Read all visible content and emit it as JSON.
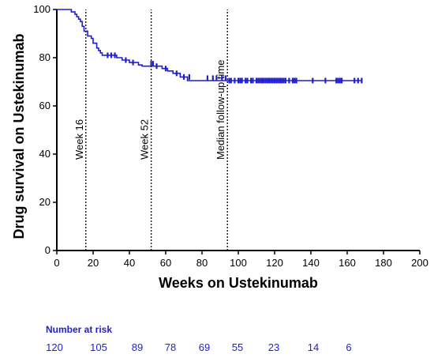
{
  "chart_data": {
    "type": "line",
    "xlabel": "Weeks on Ustekinumab",
    "ylabel": "Drug survival on Ustekinumab",
    "xlim": [
      0,
      200
    ],
    "ylim": [
      0,
      100
    ],
    "x_ticks": [
      0,
      20,
      40,
      60,
      80,
      100,
      120,
      140,
      160,
      180,
      200
    ],
    "y_ticks": [
      0,
      20,
      40,
      60,
      80,
      100
    ],
    "grid": false,
    "series_color": "#1f1fcf",
    "steps": [
      [
        0,
        100
      ],
      [
        8,
        100
      ],
      [
        8,
        99
      ],
      [
        10,
        99
      ],
      [
        10,
        98
      ],
      [
        11,
        98
      ],
      [
        11,
        97
      ],
      [
        12,
        97
      ],
      [
        12,
        96
      ],
      [
        13,
        96
      ],
      [
        13,
        95
      ],
      [
        14,
        95
      ],
      [
        14,
        93
      ],
      [
        15,
        93
      ],
      [
        15,
        91
      ],
      [
        17,
        91
      ],
      [
        17,
        89
      ],
      [
        19,
        89
      ],
      [
        19,
        88
      ],
      [
        20,
        88
      ],
      [
        20,
        86
      ],
      [
        22,
        86
      ],
      [
        22,
        84
      ],
      [
        23,
        84
      ],
      [
        23,
        83
      ],
      [
        24,
        83
      ],
      [
        24,
        82
      ],
      [
        25,
        82
      ],
      [
        25,
        81
      ],
      [
        33,
        81
      ],
      [
        33,
        80
      ],
      [
        36,
        80
      ],
      [
        36,
        79
      ],
      [
        40,
        79
      ],
      [
        40,
        78
      ],
      [
        45,
        78
      ],
      [
        45,
        77
      ],
      [
        47,
        77
      ],
      [
        47,
        76.5
      ],
      [
        58,
        76.5
      ],
      [
        58,
        75.5
      ],
      [
        61,
        75.5
      ],
      [
        61,
        74.5
      ],
      [
        64,
        74.5
      ],
      [
        64,
        73.5
      ],
      [
        68,
        73.5
      ],
      [
        68,
        72
      ],
      [
        72,
        72
      ],
      [
        72,
        70.5
      ],
      [
        168,
        70.5
      ]
    ],
    "censored": [
      [
        28,
        81
      ],
      [
        30,
        81
      ],
      [
        32,
        81
      ],
      [
        38,
        79
      ],
      [
        42,
        78
      ],
      [
        52,
        77.5
      ],
      [
        53,
        77.5
      ],
      [
        55,
        76.5
      ],
      [
        60,
        75.5
      ],
      [
        66,
        73.5
      ],
      [
        70,
        72
      ],
      [
        73,
        72
      ],
      [
        83,
        71.5
      ],
      [
        86,
        71.5
      ],
      [
        88,
        71.5
      ],
      [
        91,
        71.5
      ],
      [
        93,
        71.5
      ],
      [
        95,
        70.5
      ],
      [
        96,
        70.5
      ],
      [
        98,
        70.5
      ],
      [
        100,
        70.5
      ],
      [
        101,
        70.5
      ],
      [
        102,
        70.5
      ],
      [
        104,
        70.5
      ],
      [
        105,
        70.5
      ],
      [
        107,
        70.5
      ],
      [
        108,
        70.5
      ],
      [
        110,
        70.5
      ],
      [
        111,
        70.5
      ],
      [
        112,
        70.5
      ],
      [
        113,
        70.5
      ],
      [
        114,
        70.5
      ],
      [
        115,
        70.5
      ],
      [
        116,
        70.5
      ],
      [
        117,
        70.5
      ],
      [
        118,
        70.5
      ],
      [
        119,
        70.5
      ],
      [
        120,
        70.5
      ],
      [
        121,
        70.5
      ],
      [
        122,
        70.5
      ],
      [
        123,
        70.5
      ],
      [
        124,
        70.5
      ],
      [
        125,
        70.5
      ],
      [
        126,
        70.5
      ],
      [
        128,
        70.5
      ],
      [
        130,
        70.5
      ],
      [
        131,
        70.5
      ],
      [
        132,
        70.5
      ],
      [
        141,
        70.5
      ],
      [
        148,
        70.5
      ],
      [
        154,
        70.5
      ],
      [
        155,
        70.5
      ],
      [
        156,
        70.5
      ],
      [
        157,
        70.5
      ],
      [
        164,
        70.5
      ],
      [
        166,
        70.5
      ],
      [
        168,
        70.5
      ]
    ],
    "reference_lines": [
      {
        "x": 16,
        "label": "Week 16"
      },
      {
        "x": 52,
        "label": "Week 52"
      },
      {
        "x": 94,
        "label": "Median follow-up time"
      }
    ]
  },
  "risk_table": {
    "title": "Number at risk",
    "values": [
      "120",
      "105",
      "89",
      "78",
      "69",
      "55",
      "23",
      "14",
      "6"
    ]
  }
}
